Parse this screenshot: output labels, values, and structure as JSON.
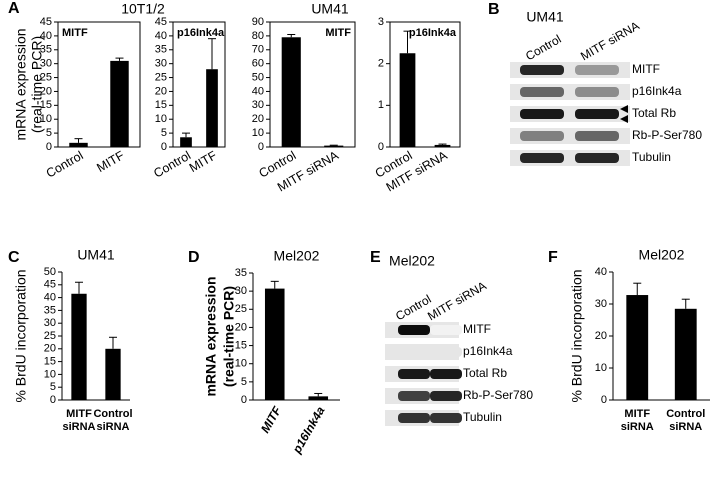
{
  "panel_letters": [
    "A",
    "B",
    "C",
    "D",
    "E",
    "F"
  ],
  "group_titles": [
    "10T1/2",
    "UM41"
  ],
  "chart_data": [
    {
      "type": "bar",
      "label": "MITF",
      "ylabel": [
        "mRNA expression",
        "(real-time PCR)"
      ],
      "categories": [
        "Control",
        "MITF"
      ],
      "values": [
        1.5,
        31
      ],
      "errors": [
        1.5,
        1
      ],
      "ylim": [
        0,
        45
      ],
      "yticks": [
        0,
        5,
        10,
        15,
        20,
        25,
        30,
        35,
        40,
        45
      ],
      "color": "#000000"
    },
    {
      "type": "bar",
      "label": "p16Ink4a",
      "categories": [
        "Control",
        "MITF"
      ],
      "values": [
        3.5,
        28
      ],
      "errors": [
        1.5,
        11
      ],
      "ylim": [
        0,
        45
      ],
      "yticks": [
        0,
        5,
        10,
        15,
        20,
        25,
        30,
        35,
        40,
        45
      ],
      "color": "#000000"
    },
    {
      "type": "bar",
      "label": "MITF",
      "categories": [
        "Control",
        "MITF siRNA"
      ],
      "values": [
        79,
        1
      ],
      "errors": [
        2,
        0.3
      ],
      "ylim": [
        0,
        90
      ],
      "yticks": [
        0,
        10,
        20,
        30,
        40,
        50,
        60,
        70,
        80,
        90
      ],
      "color": "#000000"
    },
    {
      "type": "bar",
      "label": "p16Ink4a",
      "categories": [
        "Control",
        "MITF siRNA"
      ],
      "values": [
        2.25,
        0.05
      ],
      "errors": [
        0.53,
        0.02
      ],
      "ylim": [
        0,
        3
      ],
      "yticks": [
        0,
        1,
        2,
        3
      ],
      "color": "#000000"
    },
    {
      "type": "bar",
      "title": "UM41",
      "ylabel": [
        "% BrdU incorporation"
      ],
      "categories": [
        [
          "MITF",
          "siRNA"
        ],
        [
          "Control",
          "siRNA"
        ]
      ],
      "values": [
        41.5,
        20
      ],
      "errors": [
        4.5,
        4.5
      ],
      "ylim": [
        0,
        50
      ],
      "yticks": [
        0,
        5,
        10,
        15,
        20,
        25,
        30,
        35,
        40,
        45,
        50
      ],
      "color": "#000000"
    },
    {
      "type": "bar",
      "title": "Mel202",
      "ylabel": [
        "mRNA expression",
        "(real-time PCR)"
      ],
      "categories": [
        "MITF",
        "p16Ink4a"
      ],
      "values": [
        30.7,
        1
      ],
      "errors": [
        2,
        0.8
      ],
      "ylim": [
        0,
        35
      ],
      "yticks": [
        0,
        5,
        10,
        15,
        20,
        25,
        30,
        35
      ],
      "color": "#000000"
    },
    {
      "type": "bar",
      "title": "Mel202",
      "ylabel": [
        "% BrdU incorporation"
      ],
      "categories": [
        [
          "MITF",
          "siRNA"
        ],
        [
          "Control",
          "siRNA"
        ]
      ],
      "values": [
        32.8,
        28.5
      ],
      "errors": [
        3.7,
        3
      ],
      "ylim": [
        0,
        40
      ],
      "yticks": [
        0,
        10,
        20,
        30,
        40
      ],
      "color": "#000000"
    }
  ],
  "blots": [
    {
      "title": "UM41",
      "lanes": [
        "Control",
        "MITF siRNA"
      ],
      "rows": [
        "MITF",
        "p16Ink4a",
        "Total Rb",
        "Rb-P-Ser780",
        "Tubulin"
      ]
    },
    {
      "title": "Mel202",
      "lanes": [
        "Control",
        "MITF siRNA"
      ],
      "rows": [
        "MITF",
        "p16Ink4a",
        "Total Rb",
        "Rb-P-Ser780",
        "Tubulin"
      ]
    }
  ]
}
